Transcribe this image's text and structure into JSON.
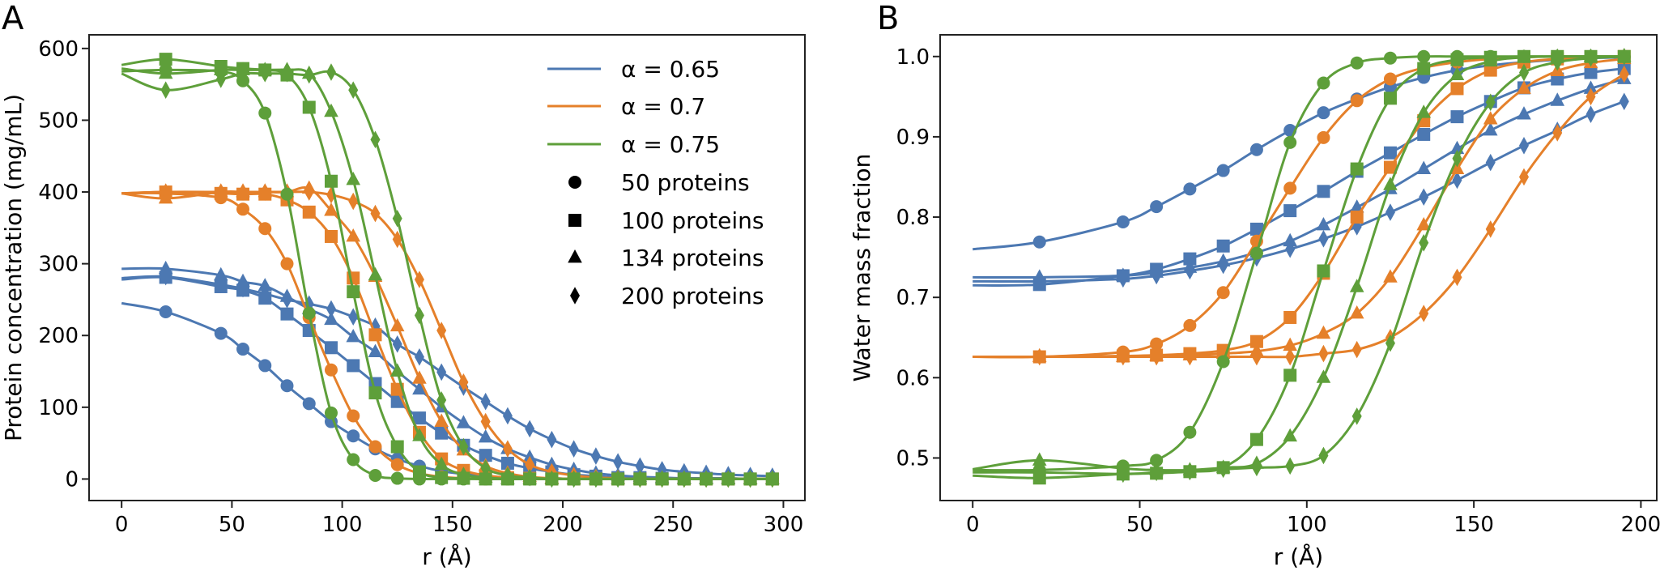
{
  "colors": {
    "alpha_0.65": "#4c78b2",
    "alpha_0.7": "#e5802a",
    "alpha_0.75": "#5e9f3a"
  },
  "legend": {
    "lines": [
      {
        "label": "α = 0.65",
        "color_key": "alpha_0.65"
      },
      {
        "label": "α = 0.7",
        "color_key": "alpha_0.7"
      },
      {
        "label": "α = 0.75",
        "color_key": "alpha_0.75"
      }
    ],
    "markers": [
      {
        "label": "50 proteins",
        "marker": "circle"
      },
      {
        "label": "100 proteins",
        "marker": "square"
      },
      {
        "label": "134 proteins",
        "marker": "triangle"
      },
      {
        "label": "200 proteins",
        "marker": "diamond"
      }
    ],
    "placement": "upper-right of panel A"
  },
  "chart_data": [
    {
      "panel_label": "A",
      "type": "line",
      "xlabel": "r (Å)",
      "ylabel": "Protein concentration (mg/mL)",
      "xlim": [
        -14.75,
        309.75
      ],
      "ylim": [
        -30,
        619
      ],
      "xticks": [
        0,
        50,
        100,
        150,
        200,
        250,
        300
      ],
      "yticks": [
        0,
        100,
        200,
        300,
        400,
        500,
        600
      ],
      "grid": false,
      "x": [
        20,
        45,
        55,
        65,
        75,
        85,
        95,
        105,
        115,
        125,
        135,
        145,
        155,
        165,
        175,
        185,
        195,
        205,
        215,
        225,
        235,
        245,
        255,
        265,
        275,
        285,
        295
      ],
      "series": [
        {
          "alpha": "0.65",
          "proteins": 50,
          "marker": "circle",
          "color_key": "alpha_0.65",
          "y_at_r0": 245,
          "values": [
            233,
            203,
            181,
            158,
            130,
            105,
            80,
            60,
            42,
            28,
            18,
            11,
            7,
            4,
            2,
            1,
            1,
            0,
            0,
            0,
            0,
            0,
            0,
            0,
            0,
            0,
            0
          ]
        },
        {
          "alpha": "0.65",
          "proteins": 100,
          "marker": "square",
          "color_key": "alpha_0.65",
          "y_at_r0": 278,
          "values": [
            281,
            268,
            263,
            252,
            230,
            207,
            183,
            158,
            133,
            108,
            85,
            64,
            47,
            33,
            22,
            15,
            10,
            6,
            4,
            2,
            2,
            1,
            1,
            1,
            0,
            0,
            0
          ]
        },
        {
          "alpha": "0.65",
          "proteins": 134,
          "marker": "triangle",
          "color_key": "alpha_0.65",
          "y_at_r0": 293,
          "values": [
            293,
            284,
            275,
            269,
            254,
            237,
            222,
            198,
            177,
            150,
            125,
            100,
            78,
            58,
            42,
            30,
            20,
            13,
            8,
            5,
            3,
            2,
            1,
            1,
            1,
            0,
            0
          ]
        },
        {
          "alpha": "0.65",
          "proteins": 200,
          "marker": "diamond",
          "color_key": "alpha_0.65",
          "y_at_r0": 280,
          "values": [
            282,
            271,
            265,
            258,
            250,
            244,
            237,
            226,
            213,
            188,
            170,
            149,
            128,
            108,
            88,
            70,
            55,
            42,
            32,
            24,
            18,
            13,
            10,
            8,
            6,
            5,
            4
          ]
        },
        {
          "alpha": "0.7",
          "proteins": 50,
          "marker": "circle",
          "color_key": "alpha_0.7",
          "y_at_r0": 398,
          "values": [
            398,
            392,
            376,
            349,
            300,
            225,
            152,
            88,
            45,
            20,
            8,
            3,
            1,
            0,
            0,
            0,
            0,
            0,
            0,
            0,
            0,
            0,
            0,
            0,
            0,
            0,
            0
          ]
        },
        {
          "alpha": "0.7",
          "proteins": 100,
          "marker": "square",
          "color_key": "alpha_0.7",
          "y_at_r0": 398,
          "values": [
            400,
            398,
            397,
            397,
            389,
            372,
            338,
            280,
            201,
            125,
            65,
            28,
            12,
            5,
            2,
            1,
            0,
            0,
            0,
            0,
            0,
            0,
            0,
            0,
            0,
            0,
            0
          ]
        },
        {
          "alpha": "0.7",
          "proteins": 134,
          "marker": "triangle",
          "color_key": "alpha_0.7",
          "y_at_r0": 398,
          "values": [
            391,
            400,
            400,
            400,
            400,
            405,
            374,
            338,
            282,
            213,
            140,
            80,
            40,
            18,
            8,
            3,
            1,
            0,
            0,
            0,
            0,
            0,
            0,
            0,
            0,
            0,
            0
          ]
        },
        {
          "alpha": "0.7",
          "proteins": 200,
          "marker": "diamond",
          "color_key": "alpha_0.7",
          "y_at_r0": 398,
          "values": [
            400,
            400,
            400,
            400,
            400,
            400,
            396,
            387,
            370,
            334,
            278,
            207,
            135,
            80,
            42,
            20,
            10,
            5,
            2,
            1,
            0,
            0,
            0,
            0,
            0,
            0,
            0
          ]
        },
        {
          "alpha": "0.75",
          "proteins": 50,
          "marker": "circle",
          "color_key": "alpha_0.75",
          "y_at_r0": 568,
          "values": [
            570,
            568,
            555,
            510,
            397,
            231,
            92,
            27,
            5,
            1,
            0,
            0,
            0,
            0,
            0,
            0,
            0,
            0,
            0,
            0,
            0,
            0,
            0,
            0,
            0,
            0,
            0
          ]
        },
        {
          "alpha": "0.75",
          "proteins": 100,
          "marker": "square",
          "color_key": "alpha_0.75",
          "y_at_r0": 577,
          "values": [
            585,
            575,
            572,
            570,
            563,
            518,
            415,
            261,
            120,
            45,
            10,
            2,
            1,
            0,
            0,
            0,
            0,
            0,
            0,
            0,
            0,
            0,
            0,
            0,
            0,
            0,
            0
          ]
        },
        {
          "alpha": "0.75",
          "proteins": 134,
          "marker": "triangle",
          "color_key": "alpha_0.75",
          "y_at_r0": 572,
          "values": [
            565,
            570,
            570,
            570,
            570,
            565,
            512,
            417,
            284,
            150,
            60,
            20,
            6,
            2,
            0,
            0,
            0,
            0,
            0,
            0,
            0,
            0,
            0,
            0,
            0,
            0,
            0
          ]
        },
        {
          "alpha": "0.75",
          "proteins": 200,
          "marker": "diamond",
          "color_key": "alpha_0.75",
          "y_at_r0": 565,
          "values": [
            542,
            557,
            565,
            565,
            565,
            563,
            567,
            542,
            473,
            363,
            228,
            110,
            45,
            15,
            5,
            2,
            0,
            0,
            0,
            0,
            0,
            0,
            0,
            0,
            0,
            0,
            0
          ]
        }
      ]
    },
    {
      "panel_label": "B",
      "type": "line",
      "xlabel": "r (Å)",
      "ylabel": "Water mass fraction",
      "xlim": [
        -9.75,
        204.75
      ],
      "ylim": [
        0.447,
        1.027
      ],
      "xticks": [
        0,
        50,
        100,
        150,
        200
      ],
      "yticks": [
        "0.5",
        "0.6",
        "0.7",
        "0.8",
        "0.9",
        "1.0"
      ],
      "grid": false,
      "x": [
        20,
        45,
        55,
        65,
        75,
        85,
        95,
        105,
        115,
        125,
        135,
        145,
        155,
        165,
        175,
        185,
        195
      ],
      "series": [
        {
          "alpha": "0.65",
          "proteins": 50,
          "marker": "circle",
          "color_key": "alpha_0.65",
          "y_at_r0": 0.76,
          "values": [
            0.769,
            0.794,
            0.813,
            0.835,
            0.858,
            0.884,
            0.908,
            0.93,
            0.947,
            0.962,
            0.974,
            0.983,
            0.989,
            0.993,
            0.996,
            0.998,
            0.999
          ]
        },
        {
          "alpha": "0.65",
          "proteins": 100,
          "marker": "square",
          "color_key": "alpha_0.65",
          "y_at_r0": 0.715,
          "values": [
            0.716,
            0.727,
            0.735,
            0.748,
            0.764,
            0.785,
            0.808,
            0.832,
            0.857,
            0.88,
            0.903,
            0.925,
            0.944,
            0.961,
            0.972,
            0.98,
            0.985
          ]
        },
        {
          "alpha": "0.65",
          "proteins": 134,
          "marker": "triangle",
          "color_key": "alpha_0.65",
          "y_at_r0": 0.725,
          "values": [
            0.725,
            0.727,
            0.731,
            0.737,
            0.745,
            0.756,
            0.77,
            0.79,
            0.812,
            0.835,
            0.86,
            0.885,
            0.908,
            0.928,
            0.945,
            0.96,
            0.972
          ]
        },
        {
          "alpha": "0.65",
          "proteins": 200,
          "marker": "diamond",
          "color_key": "alpha_0.65",
          "y_at_r0": 0.72,
          "values": [
            0.72,
            0.723,
            0.727,
            0.733,
            0.74,
            0.749,
            0.76,
            0.773,
            0.788,
            0.806,
            0.825,
            0.846,
            0.868,
            0.889,
            0.908,
            0.928,
            0.944
          ]
        },
        {
          "alpha": "0.7",
          "proteins": 50,
          "marker": "circle",
          "color_key": "alpha_0.7",
          "y_at_r0": 0.626,
          "values": [
            0.626,
            0.632,
            0.642,
            0.665,
            0.706,
            0.77,
            0.836,
            0.899,
            0.945,
            0.972,
            0.986,
            0.993,
            0.997,
            0.999,
            1.0,
            1.0,
            1.0
          ]
        },
        {
          "alpha": "0.7",
          "proteins": 100,
          "marker": "square",
          "color_key": "alpha_0.7",
          "y_at_r0": 0.626,
          "values": [
            0.626,
            0.627,
            0.628,
            0.63,
            0.634,
            0.645,
            0.675,
            0.73,
            0.8,
            0.862,
            0.92,
            0.96,
            0.983,
            0.993,
            0.997,
            0.999,
            1.0
          ]
        },
        {
          "alpha": "0.7",
          "proteins": 134,
          "marker": "triangle",
          "color_key": "alpha_0.7",
          "y_at_r0": 0.626,
          "values": [
            0.626,
            0.626,
            0.627,
            0.628,
            0.63,
            0.633,
            0.64,
            0.655,
            0.68,
            0.725,
            0.79,
            0.86,
            0.922,
            0.96,
            0.982,
            0.992,
            0.997
          ]
        },
        {
          "alpha": "0.7",
          "proteins": 200,
          "marker": "diamond",
          "color_key": "alpha_0.7",
          "y_at_r0": 0.626,
          "values": [
            0.626,
            0.626,
            0.626,
            0.626,
            0.626,
            0.626,
            0.626,
            0.63,
            0.635,
            0.65,
            0.68,
            0.725,
            0.785,
            0.85,
            0.905,
            0.95,
            0.978
          ]
        },
        {
          "alpha": "0.75",
          "proteins": 50,
          "marker": "circle",
          "color_key": "alpha_0.75",
          "y_at_r0": 0.485,
          "values": [
            0.485,
            0.49,
            0.497,
            0.532,
            0.62,
            0.755,
            0.893,
            0.967,
            0.992,
            0.998,
            1.0,
            1.0,
            1.0,
            1.0,
            1.0,
            1.0,
            1.0
          ]
        },
        {
          "alpha": "0.75",
          "proteins": 100,
          "marker": "square",
          "color_key": "alpha_0.75",
          "y_at_r0": 0.478,
          "values": [
            0.475,
            0.48,
            0.481,
            0.483,
            0.488,
            0.523,
            0.603,
            0.733,
            0.86,
            0.948,
            0.985,
            0.996,
            0.999,
            1.0,
            1.0,
            1.0,
            1.0
          ]
        },
        {
          "alpha": "0.75",
          "proteins": 134,
          "marker": "triangle",
          "color_key": "alpha_0.75",
          "y_at_r0": 0.486,
          "values": [
            0.497,
            0.487,
            0.485,
            0.485,
            0.488,
            0.493,
            0.527,
            0.6,
            0.713,
            0.84,
            0.93,
            0.977,
            0.994,
            0.999,
            1.0,
            1.0,
            1.0
          ]
        },
        {
          "alpha": "0.75",
          "proteins": 200,
          "marker": "diamond",
          "color_key": "alpha_0.75",
          "y_at_r0": 0.482,
          "values": [
            0.482,
            0.48,
            0.482,
            0.483,
            0.486,
            0.488,
            0.49,
            0.503,
            0.552,
            0.643,
            0.768,
            0.873,
            0.943,
            0.98,
            0.993,
            0.998,
            1.0
          ]
        }
      ]
    }
  ]
}
